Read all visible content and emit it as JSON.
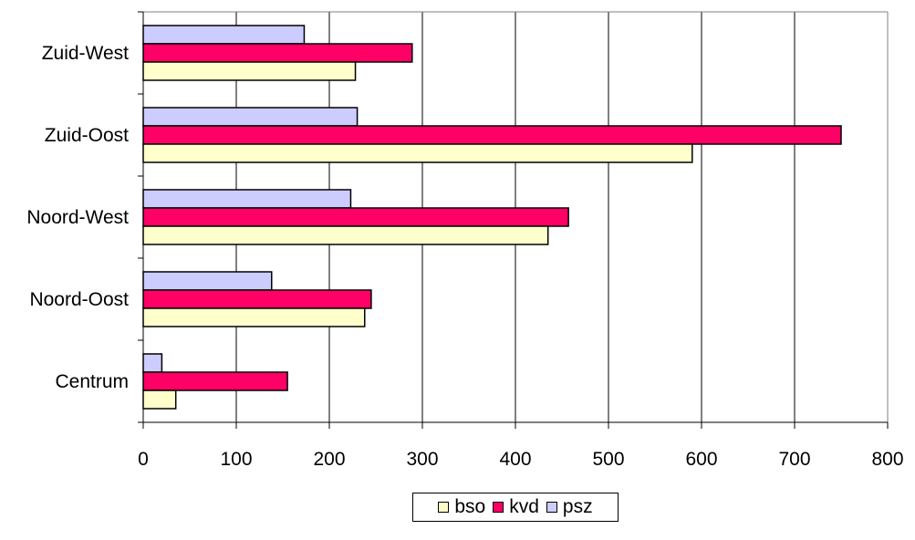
{
  "chart_data": {
    "type": "bar",
    "orientation": "horizontal",
    "title": "",
    "xlabel": "",
    "ylabel": "",
    "categories": [
      "Centrum",
      "Noord-Oost",
      "Noord-West",
      "Zuid-Oost",
      "Zuid-West"
    ],
    "series": [
      {
        "name": "bso",
        "color": "#ffffcc",
        "values": [
          35,
          238,
          435,
          590,
          228
        ]
      },
      {
        "name": "kvd",
        "color": "#ff0066",
        "values": [
          155,
          245,
          457,
          750,
          289
        ]
      },
      {
        "name": "psz",
        "color": "#ccccff",
        "values": [
          20,
          138,
          223,
          230,
          173
        ]
      }
    ],
    "xlim": [
      0,
      800
    ],
    "xticks": [
      "0",
      "100",
      "200",
      "300",
      "400",
      "500",
      "600",
      "700",
      "800"
    ],
    "grid": "vertical",
    "legend": "bottom"
  }
}
